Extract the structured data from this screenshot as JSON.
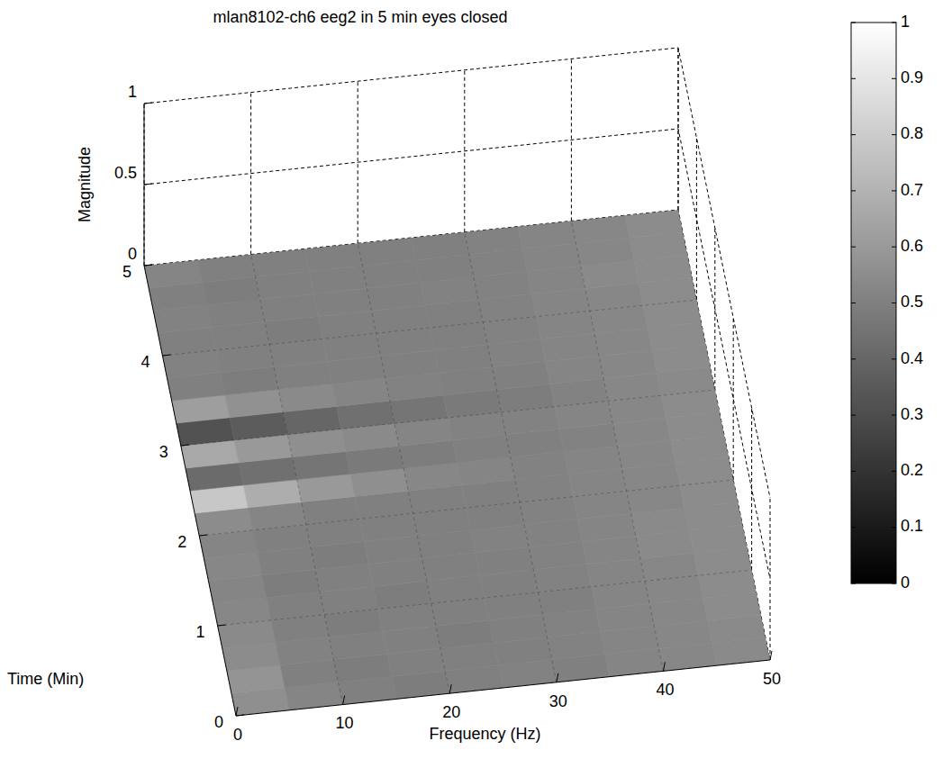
{
  "chart_data": {
    "type": "surface",
    "title": "mlan8102-ch6 eeg2 in 5 min eyes closed",
    "x_label": "Frequency (Hz)",
    "y_label": "Time (Min)",
    "z_label": "Magnitude",
    "xlim": [
      0,
      50
    ],
    "xticks": [
      0,
      10,
      20,
      30,
      40,
      50
    ],
    "ylim": [
      0,
      5
    ],
    "yticks": [
      0,
      1,
      2,
      3,
      4,
      5
    ],
    "zlim": [
      0,
      1
    ],
    "zticks": [
      0,
      0.5,
      1
    ],
    "grid": true,
    "x_edges": [
      0,
      5,
      10,
      15,
      20,
      25,
      30,
      35,
      40,
      45,
      50
    ],
    "y_edges": [
      0,
      0.25,
      0.5,
      0.75,
      1,
      1.25,
      1.5,
      1.75,
      2,
      2.25,
      2.5,
      2.75,
      3,
      3.25,
      3.5,
      3.75,
      4,
      4.25,
      4.5,
      4.75,
      5
    ],
    "cells": [
      [
        0.56,
        0.52,
        0.5,
        0.49,
        0.5,
        0.51,
        0.5,
        0.52,
        0.53,
        0.54
      ],
      [
        0.58,
        0.5,
        0.49,
        0.5,
        0.5,
        0.5,
        0.51,
        0.52,
        0.53,
        0.54
      ],
      [
        0.55,
        0.51,
        0.5,
        0.5,
        0.49,
        0.5,
        0.51,
        0.52,
        0.53,
        0.55
      ],
      [
        0.54,
        0.5,
        0.49,
        0.5,
        0.5,
        0.5,
        0.5,
        0.52,
        0.53,
        0.55
      ],
      [
        0.53,
        0.5,
        0.5,
        0.49,
        0.5,
        0.5,
        0.51,
        0.52,
        0.53,
        0.55
      ],
      [
        0.52,
        0.49,
        0.5,
        0.5,
        0.5,
        0.5,
        0.51,
        0.52,
        0.54,
        0.55
      ],
      [
        0.53,
        0.5,
        0.49,
        0.5,
        0.5,
        0.51,
        0.51,
        0.52,
        0.54,
        0.55
      ],
      [
        0.52,
        0.5,
        0.5,
        0.5,
        0.5,
        0.5,
        0.51,
        0.52,
        0.53,
        0.55
      ],
      [
        0.55,
        0.52,
        0.5,
        0.5,
        0.5,
        0.5,
        0.51,
        0.52,
        0.53,
        0.55
      ],
      [
        0.78,
        0.68,
        0.6,
        0.56,
        0.53,
        0.52,
        0.51,
        0.52,
        0.53,
        0.55
      ],
      [
        0.42,
        0.44,
        0.46,
        0.48,
        0.49,
        0.5,
        0.5,
        0.51,
        0.53,
        0.55
      ],
      [
        0.66,
        0.6,
        0.56,
        0.54,
        0.52,
        0.51,
        0.51,
        0.52,
        0.53,
        0.55
      ],
      [
        0.32,
        0.36,
        0.4,
        0.44,
        0.46,
        0.48,
        0.49,
        0.51,
        0.53,
        0.54
      ],
      [
        0.62,
        0.57,
        0.54,
        0.52,
        0.51,
        0.5,
        0.5,
        0.52,
        0.53,
        0.55
      ],
      [
        0.5,
        0.49,
        0.5,
        0.5,
        0.5,
        0.5,
        0.51,
        0.52,
        0.53,
        0.55
      ],
      [
        0.51,
        0.5,
        0.5,
        0.5,
        0.5,
        0.5,
        0.51,
        0.52,
        0.53,
        0.55
      ],
      [
        0.5,
        0.5,
        0.49,
        0.5,
        0.5,
        0.5,
        0.51,
        0.52,
        0.53,
        0.55
      ],
      [
        0.51,
        0.5,
        0.5,
        0.5,
        0.5,
        0.51,
        0.51,
        0.52,
        0.54,
        0.55
      ],
      [
        0.5,
        0.49,
        0.5,
        0.5,
        0.5,
        0.5,
        0.51,
        0.52,
        0.53,
        0.55
      ],
      [
        0.52,
        0.5,
        0.5,
        0.5,
        0.5,
        0.5,
        0.51,
        0.52,
        0.53,
        0.55
      ]
    ],
    "colorbar_lim": [
      0,
      1
    ],
    "colorbar_ticks": [
      0,
      0.1,
      0.2,
      0.3,
      0.4,
      0.5,
      0.6,
      0.7,
      0.8,
      0.9,
      1
    ]
  }
}
